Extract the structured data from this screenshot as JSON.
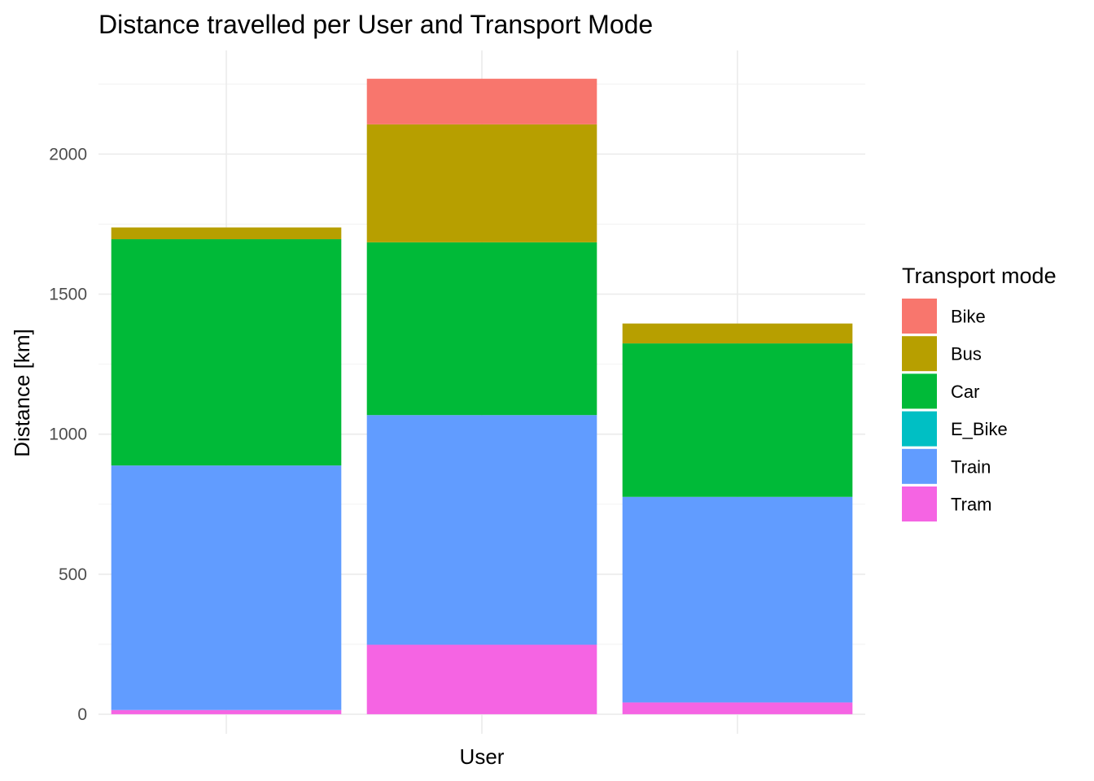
{
  "chart_data": {
    "type": "bar",
    "stacked": true,
    "title": "Distance travelled per User and Transport Mode",
    "xlabel": "User",
    "ylabel": "Distance [km]",
    "categories": [
      "",
      "",
      ""
    ],
    "ylim": [
      -70,
      2370
    ],
    "yticks": [
      0,
      500,
      1000,
      1500,
      2000
    ],
    "grid": true,
    "legend": {
      "title": "Transport mode",
      "position": "right"
    },
    "series": [
      {
        "name": "Tram",
        "color": "#F564E3",
        "values": [
          15,
          248,
          42
        ]
      },
      {
        "name": "Train",
        "color": "#619CFF",
        "values": [
          873,
          820,
          734
        ]
      },
      {
        "name": "E_Bike",
        "color": "#00BFC4",
        "values": [
          0,
          0,
          0
        ]
      },
      {
        "name": "Car",
        "color": "#00BA38",
        "values": [
          808,
          617,
          548
        ]
      },
      {
        "name": "Bus",
        "color": "#B79F00",
        "values": [
          42,
          421,
          71
        ]
      },
      {
        "name": "Bike",
        "color": "#F8766D",
        "values": [
          0,
          163,
          0
        ]
      }
    ],
    "legend_order": [
      "Bike",
      "Bus",
      "Car",
      "E_Bike",
      "Train",
      "Tram"
    ]
  }
}
